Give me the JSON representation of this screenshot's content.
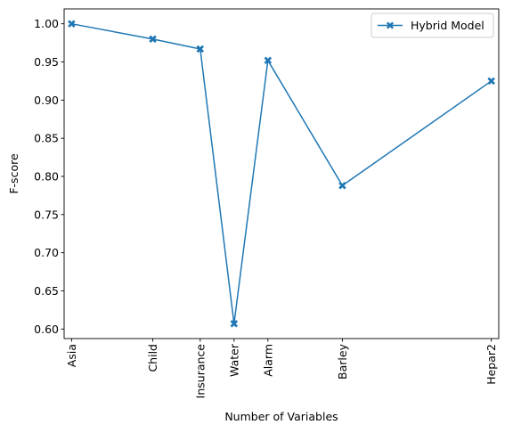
{
  "chart_data": {
    "type": "line",
    "title": "",
    "xlabel": "Number of Variables",
    "ylabel": "F-score",
    "categories": [
      "Asia",
      "Child",
      "Insurance",
      "Water",
      "Alarm",
      "Barley",
      "Hepar2"
    ],
    "x": [
      8,
      20,
      27,
      32,
      37,
      48,
      70
    ],
    "series": [
      {
        "name": "Hybrid Model",
        "color": "#1f77b4",
        "marker": "X",
        "values": [
          1.0,
          0.98,
          0.967,
          0.607,
          0.952,
          0.788,
          0.925
        ]
      }
    ],
    "xlim": [
      6.9,
      71.1
    ],
    "ylim": [
      0.5875,
      1.0195
    ],
    "yticks": [
      0.6,
      0.65,
      0.7,
      0.75,
      0.8,
      0.85,
      0.9,
      0.95,
      1.0
    ],
    "ytick_labels": [
      "0.60",
      "0.65",
      "0.70",
      "0.75",
      "0.80",
      "0.85",
      "0.90",
      "0.95",
      "1.00"
    ],
    "grid": false,
    "legend_position": "top-right"
  }
}
